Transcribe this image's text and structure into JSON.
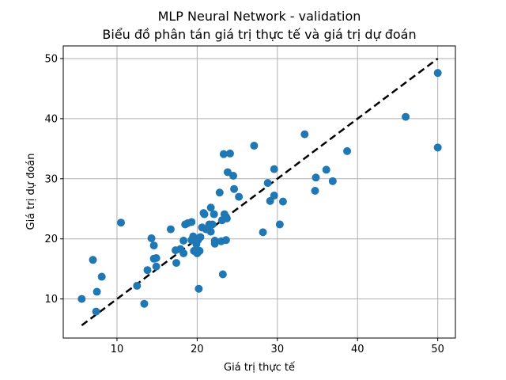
{
  "chart_data": {
    "type": "scatter",
    "title": "MLP Neural Network - validation",
    "subtitle": "Biểu đồ phân tán giá trị thực tế và giá trị dự đoán",
    "xlabel": "Giá trị thực tế",
    "ylabel": "Giá trị dự đoán",
    "xlim": [
      3.3,
      52.2
    ],
    "ylim": [
      3.5,
      52.1
    ],
    "xticks": [
      10,
      20,
      30,
      40,
      50
    ],
    "yticks": [
      10,
      20,
      30,
      40,
      50
    ],
    "grid": true,
    "point_color": "#1f77b4",
    "reference_line": {
      "x": [
        5.6,
        50.0
      ],
      "y": [
        5.6,
        50.0
      ],
      "style": "dashed",
      "color": "#000000"
    },
    "points": [
      {
        "x": 5.6,
        "y": 10.0
      },
      {
        "x": 7.0,
        "y": 16.5
      },
      {
        "x": 7.4,
        "y": 7.9
      },
      {
        "x": 7.5,
        "y": 11.2
      },
      {
        "x": 8.1,
        "y": 13.7
      },
      {
        "x": 10.5,
        "y": 22.7
      },
      {
        "x": 12.5,
        "y": 12.2
      },
      {
        "x": 13.4,
        "y": 9.2
      },
      {
        "x": 13.8,
        "y": 14.8
      },
      {
        "x": 14.3,
        "y": 20.1
      },
      {
        "x": 14.6,
        "y": 18.9
      },
      {
        "x": 14.6,
        "y": 16.7
      },
      {
        "x": 14.9,
        "y": 16.8
      },
      {
        "x": 14.9,
        "y": 15.4
      },
      {
        "x": 16.7,
        "y": 21.6
      },
      {
        "x": 17.3,
        "y": 18.1
      },
      {
        "x": 17.4,
        "y": 16.0
      },
      {
        "x": 17.9,
        "y": 18.3
      },
      {
        "x": 18.3,
        "y": 17.6
      },
      {
        "x": 18.3,
        "y": 19.7
      },
      {
        "x": 18.5,
        "y": 22.4
      },
      {
        "x": 18.8,
        "y": 22.6
      },
      {
        "x": 19.3,
        "y": 22.8
      },
      {
        "x": 19.3,
        "y": 19.8
      },
      {
        "x": 19.5,
        "y": 20.4
      },
      {
        "x": 19.6,
        "y": 18.0
      },
      {
        "x": 19.8,
        "y": 17.9
      },
      {
        "x": 19.9,
        "y": 19.1
      },
      {
        "x": 20.0,
        "y": 17.6
      },
      {
        "x": 20.1,
        "y": 19.8
      },
      {
        "x": 20.2,
        "y": 11.7
      },
      {
        "x": 20.3,
        "y": 18.0
      },
      {
        "x": 20.4,
        "y": 20.3
      },
      {
        "x": 20.6,
        "y": 21.9
      },
      {
        "x": 20.8,
        "y": 24.3
      },
      {
        "x": 20.9,
        "y": 24.1
      },
      {
        "x": 21.1,
        "y": 21.6
      },
      {
        "x": 21.5,
        "y": 22.4
      },
      {
        "x": 21.7,
        "y": 21.2
      },
      {
        "x": 21.7,
        "y": 25.2
      },
      {
        "x": 21.9,
        "y": 22.4
      },
      {
        "x": 22.1,
        "y": 24.1
      },
      {
        "x": 22.2,
        "y": 19.7
      },
      {
        "x": 22.2,
        "y": 19.2
      },
      {
        "x": 22.8,
        "y": 27.7
      },
      {
        "x": 23.0,
        "y": 19.6
      },
      {
        "x": 23.1,
        "y": 23.1
      },
      {
        "x": 23.2,
        "y": 14.1
      },
      {
        "x": 23.3,
        "y": 34.1
      },
      {
        "x": 23.4,
        "y": 24.1
      },
      {
        "x": 23.6,
        "y": 19.8
      },
      {
        "x": 23.7,
        "y": 23.4
      },
      {
        "x": 23.8,
        "y": 31.1
      },
      {
        "x": 24.1,
        "y": 34.2
      },
      {
        "x": 24.5,
        "y": 30.5
      },
      {
        "x": 24.6,
        "y": 28.3
      },
      {
        "x": 25.2,
        "y": 27.0
      },
      {
        "x": 27.1,
        "y": 35.5
      },
      {
        "x": 28.2,
        "y": 21.1
      },
      {
        "x": 28.8,
        "y": 29.3
      },
      {
        "x": 29.1,
        "y": 26.3
      },
      {
        "x": 29.6,
        "y": 31.6
      },
      {
        "x": 29.6,
        "y": 27.2
      },
      {
        "x": 30.3,
        "y": 22.4
      },
      {
        "x": 30.7,
        "y": 26.2
      },
      {
        "x": 33.4,
        "y": 37.4
      },
      {
        "x": 34.7,
        "y": 28.0
      },
      {
        "x": 34.8,
        "y": 30.2
      },
      {
        "x": 36.1,
        "y": 31.5
      },
      {
        "x": 36.9,
        "y": 29.6
      },
      {
        "x": 38.7,
        "y": 34.6
      },
      {
        "x": 46.0,
        "y": 40.3
      },
      {
        "x": 50.0,
        "y": 47.6
      },
      {
        "x": 50.0,
        "y": 35.2
      }
    ]
  }
}
